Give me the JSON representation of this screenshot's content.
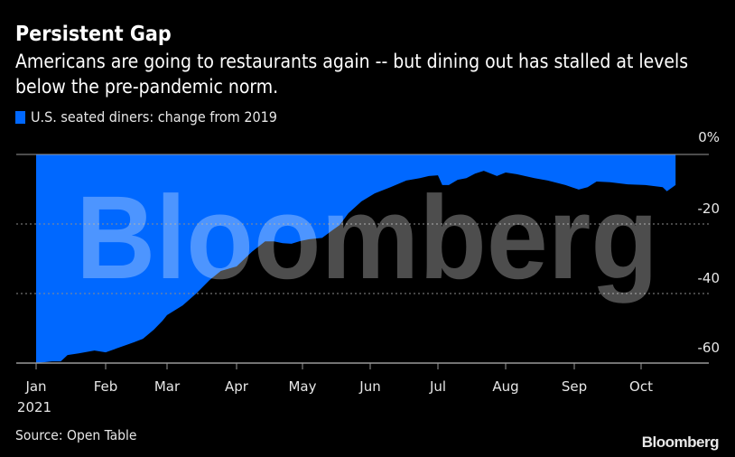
{
  "header": {
    "title": "Persistent Gap",
    "subtitle": "Americans are going to restaurants again -- but dining out has stalled at levels below the pre-pandemic norm."
  },
  "legend": {
    "label": "U.S. seated diners: change from 2019",
    "color": "#0068ff"
  },
  "footer": {
    "source": "Source: Open Table",
    "logo": "Bloomberg"
  },
  "watermark": "Bloomberg",
  "colors": {
    "background": "#000000",
    "area": "#0068ff",
    "axis": "#999999",
    "grid": "#8c8c8c",
    "text": "#e6e6e6"
  },
  "chart_data": {
    "type": "area",
    "title": "Persistent Gap",
    "subtitle": "Americans are going to restaurants again -- but dining out has stalled at levels below the pre-pandemic norm.",
    "series": [
      {
        "name": "U.S. seated diners: change from 2019",
        "unit": "%",
        "x": [
          "2021-01-01",
          "2021-01-08",
          "2021-01-12",
          "2021-01-15",
          "2021-01-20",
          "2021-01-27",
          "2021-02-01",
          "2021-02-06",
          "2021-02-14",
          "2021-02-18",
          "2021-02-23",
          "2021-02-27",
          "2021-03-01",
          "2021-03-08",
          "2021-03-14",
          "2021-03-20",
          "2021-03-25",
          "2021-04-01",
          "2021-04-08",
          "2021-04-14",
          "2021-04-18",
          "2021-04-22",
          "2021-04-26",
          "2021-04-30",
          "2021-05-04",
          "2021-05-10",
          "2021-05-14",
          "2021-05-18",
          "2021-05-22",
          "2021-05-28",
          "2021-06-03",
          "2021-06-10",
          "2021-06-17",
          "2021-06-23",
          "2021-06-27",
          "2021-07-01",
          "2021-07-03",
          "2021-07-06",
          "2021-07-10",
          "2021-07-14",
          "2021-07-18",
          "2021-07-22",
          "2021-07-28",
          "2021-08-01",
          "2021-08-06",
          "2021-08-14",
          "2021-08-20",
          "2021-08-28",
          "2021-09-03",
          "2021-09-07",
          "2021-09-11",
          "2021-09-17",
          "2021-09-25",
          "2021-10-03",
          "2021-10-11",
          "2021-10-13",
          "2021-10-17"
        ],
        "values": [
          -60,
          -59.5,
          -59.5,
          -57.7,
          -57.2,
          -56.4,
          -56.9,
          -55.8,
          -54,
          -53,
          -50.4,
          -47.8,
          -46.2,
          -43.4,
          -40,
          -36.1,
          -33.5,
          -32.2,
          -28,
          -25,
          -25,
          -25.5,
          -25.7,
          -24.9,
          -24.4,
          -24,
          -22.1,
          -20.3,
          -16.9,
          -13.5,
          -11.2,
          -9.4,
          -7.5,
          -6.8,
          -6.2,
          -6,
          -8.8,
          -8.8,
          -7.3,
          -6.8,
          -5.5,
          -4.7,
          -6.2,
          -5.2,
          -5.7,
          -6.8,
          -7.5,
          -8.8,
          -10.1,
          -9.4,
          -7.8,
          -8,
          -8.6,
          -8.8,
          -9.4,
          -10.6,
          -8.8
        ]
      }
    ],
    "xlabel": "",
    "ylabel": "",
    "x_tick_labels": [
      "Jan 2021",
      "Feb",
      "Mar",
      "Apr",
      "May",
      "Jun",
      "Jul",
      "Aug",
      "Sep",
      "Oct"
    ],
    "y_tick_labels": [
      "0%",
      "-20",
      "-40",
      "-60"
    ],
    "yticks": [
      0,
      -20,
      -40,
      -60
    ],
    "ylim": [
      -60,
      0
    ],
    "grid": "horizontal dotted",
    "y_axis_position": "right",
    "legend_position": "top-left",
    "source": "Source: Open Table",
    "fill": "area between series and 0 baseline"
  }
}
